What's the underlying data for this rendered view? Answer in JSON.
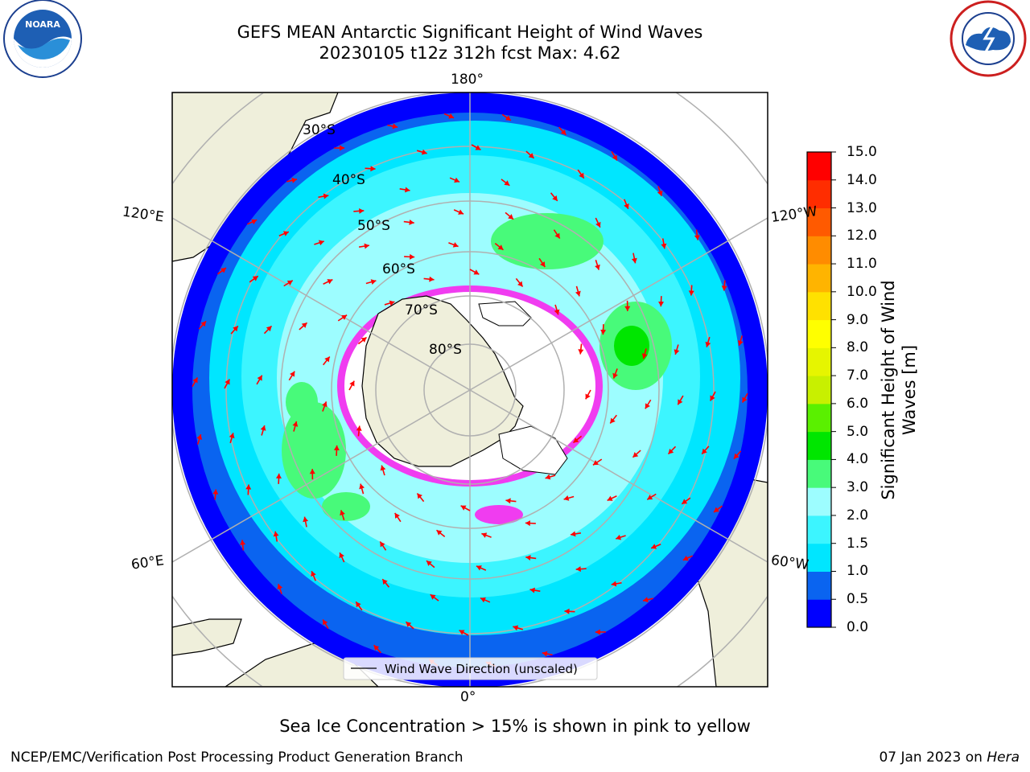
{
  "header": {
    "title_line1": "GEFS MEAN Antarctic Significant Height of Wind Waves",
    "title_line2": "20230105 t12z 312h fcst   Max: 4.62"
  },
  "logos": {
    "left": {
      "text": "NOARA",
      "icon": "noaa-logo"
    },
    "right": {
      "icon": "nws-logo"
    }
  },
  "map": {
    "projection": "south-polar-stereographic",
    "longitude_labels": {
      "top": "180°",
      "bottom": "0°",
      "left_upper": "120°E",
      "left_lower": "60°E",
      "right_upper": "120°W",
      "right_lower": "60°W"
    },
    "latitude_labels": [
      "30°S",
      "40°S",
      "50°S",
      "60°S",
      "70°S",
      "80°S"
    ],
    "legend": {
      "label": "Wind Wave Direction (unscaled)"
    },
    "colors": {
      "land": "#efefdb",
      "ice_pink": "#f03cf0",
      "arrow": "#ff0000",
      "grid": "#b0b0b0"
    }
  },
  "colorbar": {
    "title": "Significant Height of Wind Waves [m]",
    "ticks": [
      "0.0",
      "0.5",
      "1.0",
      "1.5",
      "2.0",
      "3.0",
      "4.0",
      "5.0",
      "6.0",
      "7.0",
      "8.0",
      "9.0",
      "10.0",
      "11.0",
      "12.0",
      "13.0",
      "14.0",
      "15.0"
    ],
    "colors": [
      "#0000ff",
      "#0a64f0",
      "#00e6ff",
      "#3cf5ff",
      "#9dfdff",
      "#48fa7a",
      "#00e600",
      "#5af000",
      "#c8f000",
      "#e6f500",
      "#ffff00",
      "#ffe100",
      "#ffb400",
      "#ff8c00",
      "#ff5a00",
      "#ff2d00",
      "#ff0000"
    ]
  },
  "footer": {
    "note": "Sea Ice Concentration > 15% is shown in pink to yellow",
    "credit": "NCEP/EMC/Verification Post Processing Product Generation Branch",
    "date": "07 Jan 2023 on",
    "system": "Hera"
  }
}
